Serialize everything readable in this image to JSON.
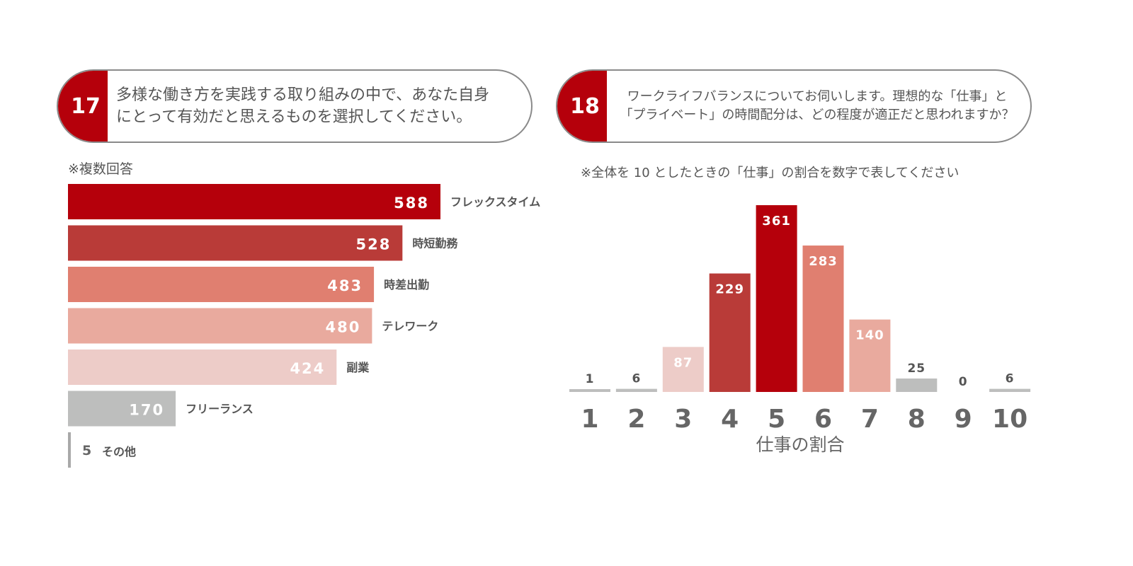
{
  "q17": {
    "number": "17",
    "text_line1": "多様な働き方を実践する取り組みの中で、あなた自身",
    "text_line2": "にとって有効だと思えるものを選択してください。",
    "note": "※複数回答"
  },
  "q18": {
    "number": "18",
    "text_line1": "ワークライフバランスについてお伺いします。理想的な「仕事」と",
    "text_line2": "「プライベート」の時間配分は、どの程度が適正だと思われますか？",
    "note": "※全体を 10 としたときの「仕事」の割合を数字で表してください"
  },
  "colors": {
    "accent": "#b5000b",
    "bar_shades": [
      "#b5000b",
      "#b93b38",
      "#e07f70",
      "#e9aa9e",
      "#edccc8",
      "#bdbebd"
    ],
    "text_gray": "#555555"
  },
  "chart_data": [
    {
      "type": "bar",
      "orientation": "horizontal",
      "categories": [
        "フレックスタイム",
        "時短勤務",
        "時差出勤",
        "テレワーク",
        "副業",
        "フリーランス",
        "その他"
      ],
      "values": [
        588,
        528,
        483,
        480,
        424,
        170,
        5
      ],
      "title": "",
      "xlabel": "",
      "ylabel": "",
      "legend": "none",
      "grid": false
    },
    {
      "type": "bar",
      "orientation": "vertical",
      "categories": [
        "1",
        "2",
        "3",
        "4",
        "5",
        "6",
        "7",
        "8",
        "9",
        "10"
      ],
      "values": [
        1,
        6,
        87,
        229,
        361,
        283,
        140,
        25,
        0,
        6
      ],
      "title": "",
      "xlabel": "仕事の割合",
      "ylabel": "",
      "ylim": [
        0,
        361
      ],
      "legend": "none",
      "grid": false
    }
  ]
}
